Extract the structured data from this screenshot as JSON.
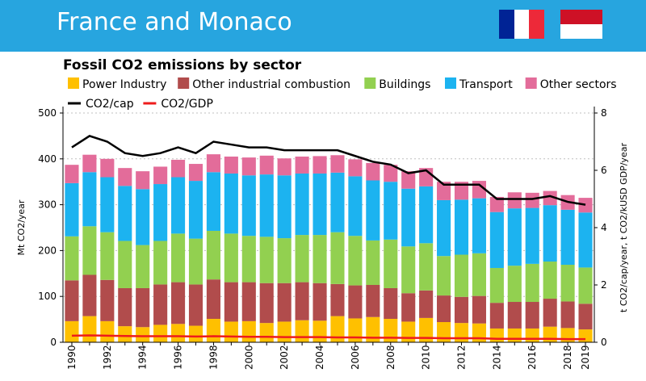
{
  "banner": {
    "title": "France and Monaco",
    "background": "#27a5df",
    "flag_france_colors": [
      "#002395",
      "#ffffff",
      "#ed2939"
    ],
    "flag_monaco_colors": [
      "#ce1126",
      "#ffffff"
    ]
  },
  "chart_data": {
    "type": "bar",
    "stacked": true,
    "title": "Fossil CO2 emissions by sector",
    "ylabel_left": "Mt CO2/year",
    "ylabel_right": "t CO2/cap/year, t CO2/kUSD GDP/year",
    "ylim_left": [
      0,
      500
    ],
    "ylim_right": [
      0,
      8
    ],
    "yticks_left": [
      "0",
      "100",
      "200",
      "300",
      "400",
      "500"
    ],
    "yticks_right": [
      "0",
      "2",
      "4",
      "6",
      "8"
    ],
    "x_tick_labels": [
      "1990",
      "1992",
      "1994",
      "1996",
      "1998",
      "2000",
      "2002",
      "2004",
      "2006",
      "2008",
      "2010",
      "2012",
      "2014",
      "2016",
      "2018",
      "2019"
    ],
    "categories": [
      1990,
      1991,
      1992,
      1993,
      1994,
      1995,
      1996,
      1997,
      1998,
      1999,
      2000,
      2001,
      2002,
      2003,
      2004,
      2005,
      2006,
      2007,
      2008,
      2009,
      2010,
      2011,
      2012,
      2013,
      2014,
      2015,
      2016,
      2017,
      2018,
      2019
    ],
    "series": [
      {
        "name": "Power Industry",
        "color": "#ffc000",
        "values": [
          46,
          57,
          46,
          35,
          33,
          38,
          40,
          36,
          51,
          45,
          46,
          42,
          45,
          48,
          47,
          57,
          52,
          55,
          51,
          45,
          53,
          44,
          42,
          41,
          30,
          30,
          30,
          34,
          31,
          28
        ]
      },
      {
        "name": "Other industrial combustion",
        "color": "#b14c4c",
        "values": [
          89,
          90,
          90,
          83,
          85,
          88,
          91,
          90,
          86,
          86,
          85,
          87,
          84,
          83,
          82,
          70,
          72,
          70,
          67,
          62,
          60,
          58,
          57,
          60,
          56,
          58,
          58,
          61,
          58,
          56
        ]
      },
      {
        "name": "Buildings",
        "color": "#92d050",
        "values": [
          96,
          106,
          104,
          103,
          94,
          95,
          106,
          100,
          106,
          106,
          101,
          101,
          98,
          103,
          105,
          113,
          108,
          97,
          106,
          102,
          103,
          86,
          92,
          93,
          76,
          79,
          83,
          81,
          80,
          79
        ]
      },
      {
        "name": "Transport",
        "color": "#1cb3f0",
        "values": [
          116,
          118,
          120,
          120,
          122,
          124,
          123,
          126,
          128,
          131,
          132,
          136,
          137,
          134,
          134,
          130,
          130,
          131,
          126,
          126,
          124,
          122,
          120,
          120,
          122,
          125,
          122,
          123,
          120,
          120
        ]
      },
      {
        "name": "Other sectors",
        "color": "#e36c9a",
        "values": [
          40,
          38,
          40,
          39,
          39,
          38,
          38,
          37,
          39,
          37,
          39,
          41,
          37,
          37,
          38,
          38,
          37,
          38,
          37,
          38,
          40,
          40,
          39,
          38,
          33,
          35,
          33,
          31,
          32,
          32
        ]
      },
      {
        "name": "CO2/cap",
        "type": "line",
        "axis": "right",
        "color": "#000000",
        "values": [
          6.8,
          7.2,
          7.0,
          6.6,
          6.5,
          6.6,
          6.8,
          6.6,
          7.0,
          6.9,
          6.8,
          6.8,
          6.7,
          6.7,
          6.7,
          6.7,
          6.5,
          6.3,
          6.2,
          5.9,
          6.0,
          5.5,
          5.5,
          5.5,
          5.0,
          5.0,
          5.0,
          5.1,
          4.9,
          4.8
        ]
      },
      {
        "name": "CO2/GDP",
        "type": "line",
        "axis": "right",
        "color": "#ee1c1c",
        "values": [
          0.23,
          0.24,
          0.23,
          0.22,
          0.21,
          0.21,
          0.21,
          0.2,
          0.21,
          0.2,
          0.19,
          0.19,
          0.18,
          0.18,
          0.18,
          0.17,
          0.17,
          0.16,
          0.16,
          0.15,
          0.15,
          0.14,
          0.14,
          0.14,
          0.12,
          0.12,
          0.12,
          0.12,
          0.11,
          0.11
        ]
      }
    ],
    "legend_row1": [
      "Power Industry",
      "Other industrial combustion",
      "Buildings",
      "Transport",
      "Other sectors"
    ],
    "legend_row2": [
      "CO2/cap",
      "CO2/GDP"
    ]
  }
}
